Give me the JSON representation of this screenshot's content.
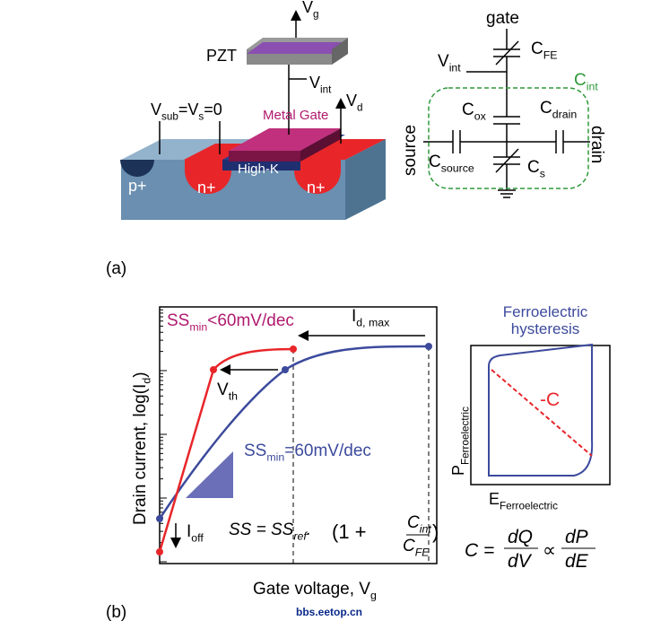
{
  "panel_a": {
    "device": {
      "vg": [
        "V",
        "g"
      ],
      "pzt": [
        "PZT"
      ],
      "vint": [
        "V",
        "int"
      ],
      "vd": [
        "V",
        "d"
      ],
      "vsub": [
        "V",
        "sub",
        "=V",
        "s",
        "=0"
      ],
      "metal_gate": [
        "Metal Gate"
      ],
      "high_k": [
        "High-K"
      ],
      "p_plus": [
        "p+"
      ],
      "n_plus_source": [
        "n+"
      ],
      "n_plus_drain": [
        "n+"
      ]
    },
    "circuit": {
      "gate": [
        "gate"
      ],
      "cfe": [
        "C",
        "FE"
      ],
      "vint": [
        "V",
        "int"
      ],
      "cint": [
        "C",
        "int"
      ],
      "cox": [
        "C",
        "ox"
      ],
      "cdrain": [
        "C",
        "drain"
      ],
      "source": [
        "source"
      ],
      "drain": [
        "drain"
      ],
      "csource": [
        "C",
        "source"
      ],
      "cs": [
        "C",
        "s"
      ]
    },
    "label": [
      "(a)"
    ]
  },
  "panel_b": {
    "plot": {
      "ss_red": [
        "SS",
        "min",
        "<60mV/dec"
      ],
      "id_max": [
        "I",
        "d, max"
      ],
      "vth": [
        "V",
        "th"
      ],
      "ss_blue": [
        "SS",
        "min",
        "=60mV/dec"
      ],
      "y_label": [
        "Drain current, log(I",
        "d",
        ")"
      ],
      "x_label": [
        "Gate voltage, V",
        "g"
      ],
      "ioff": [
        "I",
        "off"
      ]
    },
    "formula": {
      "lhs": [
        "SS = SS",
        "ref",
        "."
      ],
      "open": [
        "(1 +"
      ],
      "num": [
        "C",
        "int"
      ],
      "den": [
        "C",
        "FE"
      ],
      "close": [
        ")"
      ]
    },
    "hysteresis": {
      "title": [
        "Ferroelectric",
        "hysteresis"
      ],
      "neg_c": [
        "-C"
      ],
      "p_label": [
        "P",
        "Ferroelectric"
      ],
      "e_label": [
        "E",
        "Ferroelectric"
      ]
    },
    "c_formula": {
      "lhs": [
        "C ="
      ],
      "n1": [
        "dQ"
      ],
      "d1": [
        "dV"
      ],
      "prop": [
        "∝"
      ],
      "n2": [
        "dP"
      ],
      "d2": [
        "dE"
      ]
    },
    "label": [
      "(b)"
    ]
  },
  "watermark": [
    "bbs.eetop.cn"
  ]
}
